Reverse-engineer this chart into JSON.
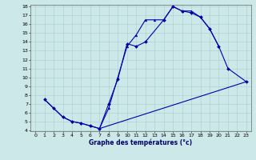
{
  "xlabel": "Graphe des températures (°c)",
  "background_color": "#cce8e8",
  "line_color": "#0000aa",
  "grid_color": "#aacccc",
  "ylim": [
    4,
    18
  ],
  "xlim": [
    -0.5,
    23.5
  ],
  "yticks": [
    4,
    5,
    6,
    7,
    8,
    9,
    10,
    11,
    12,
    13,
    14,
    15,
    16,
    17,
    18
  ],
  "xticks": [
    0,
    1,
    2,
    3,
    4,
    5,
    6,
    7,
    8,
    9,
    10,
    11,
    12,
    13,
    14,
    15,
    16,
    17,
    18,
    19,
    20,
    21,
    22,
    23
  ],
  "line1_x": [
    1,
    2,
    3,
    4,
    5,
    6,
    7,
    8,
    9,
    10,
    11,
    12,
    13,
    14,
    15,
    16,
    17,
    18,
    19,
    20
  ],
  "line1_y": [
    7.5,
    6.5,
    5.5,
    5.0,
    4.8,
    4.5,
    4.2,
    6.5,
    10.0,
    13.5,
    14.8,
    16.5,
    16.5,
    16.5,
    18.0,
    17.5,
    17.5,
    16.8,
    15.5,
    13.5
  ],
  "line2_x": [
    1,
    2,
    3,
    4,
    5,
    6,
    7,
    8,
    9,
    10,
    11,
    12,
    14,
    15,
    16,
    17,
    18,
    19,
    20,
    21,
    23
  ],
  "line2_y": [
    7.5,
    6.5,
    5.5,
    5.0,
    4.8,
    4.5,
    4.2,
    7.0,
    9.8,
    13.8,
    13.5,
    14.0,
    16.5,
    18.0,
    17.5,
    17.3,
    16.8,
    15.5,
    13.5,
    11.0,
    9.5
  ],
  "line3_x": [
    7,
    23
  ],
  "line3_y": [
    4.2,
    9.5
  ]
}
